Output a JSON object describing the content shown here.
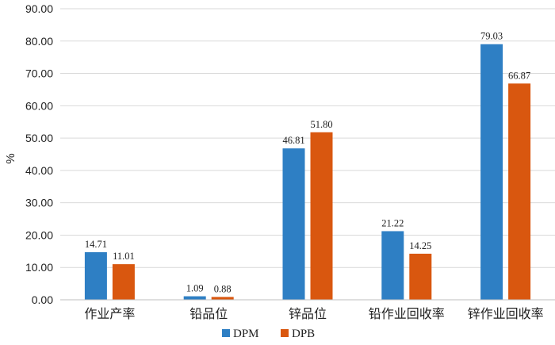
{
  "chart_data": {
    "type": "bar",
    "categories": [
      "作业产率",
      "铅品位",
      "锌品位",
      "铅作业回收率",
      "锌作业回收率"
    ],
    "series": [
      {
        "name": "DPM",
        "color": "#2e7fc4",
        "values": [
          14.71,
          1.09,
          46.81,
          21.22,
          79.03
        ],
        "labels": [
          "14.71",
          "1.09",
          "46.81",
          "21.22",
          "79.03"
        ]
      },
      {
        "name": "DPB",
        "color": "#d9570f",
        "values": [
          11.01,
          0.88,
          51.8,
          14.25,
          66.87
        ],
        "labels": [
          "11.01",
          "0.88",
          "51.80",
          "14.25",
          "66.87"
        ]
      }
    ],
    "ylabel": "%",
    "xlabel": "",
    "ylim": [
      0,
      90
    ],
    "yticks": [
      "0.00",
      "10.00",
      "20.00",
      "30.00",
      "40.00",
      "50.00",
      "60.00",
      "70.00",
      "80.00",
      "90.00"
    ],
    "grid": true,
    "legend_position": "bottom"
  }
}
